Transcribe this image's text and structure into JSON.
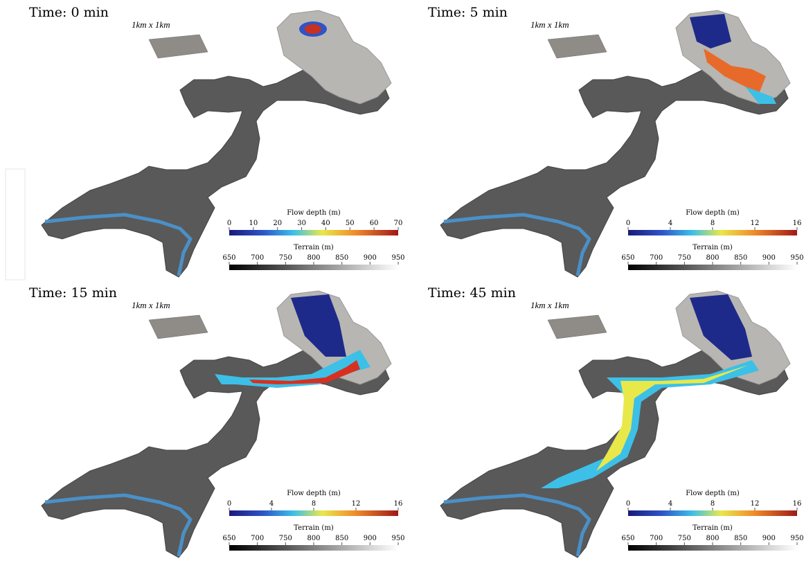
{
  "panels": [
    {
      "title": "Time: 0 min",
      "scale_label": "1km x 1km",
      "flow_colorbar": {
        "label": "Flow depth (m)",
        "ticks": [
          0,
          10,
          20,
          30,
          40,
          50,
          60,
          70
        ]
      },
      "terrain_colorbar": {
        "label": "Terrain (m)",
        "ticks": [
          650,
          700,
          750,
          800,
          850,
          900,
          950
        ]
      }
    },
    {
      "title": "Time: 5 min",
      "scale_label": "1km x 1km",
      "flow_colorbar": {
        "label": "Flow depth (m)",
        "ticks": [
          0,
          4,
          8,
          12,
          16
        ]
      },
      "terrain_colorbar": {
        "label": "Terrain (m)",
        "ticks": [
          650,
          700,
          750,
          800,
          850,
          900,
          950
        ]
      }
    },
    {
      "title": "Time: 15 min",
      "scale_label": "1km x 1km",
      "flow_colorbar": {
        "label": "Flow depth (m)",
        "ticks": [
          0,
          4,
          8,
          12,
          16
        ]
      },
      "terrain_colorbar": {
        "label": "Terrain (m)",
        "ticks": [
          650,
          700,
          750,
          800,
          850,
          900,
          950
        ]
      }
    },
    {
      "title": "Time: 45 min",
      "scale_label": "1km x 1km",
      "flow_colorbar": {
        "label": "Flow depth (m)",
        "ticks": [
          0,
          4,
          8,
          12,
          16
        ]
      },
      "terrain_colorbar": {
        "label": "Terrain (m)",
        "ticks": [
          650,
          700,
          750,
          800,
          850,
          900,
          950
        ]
      }
    }
  ]
}
